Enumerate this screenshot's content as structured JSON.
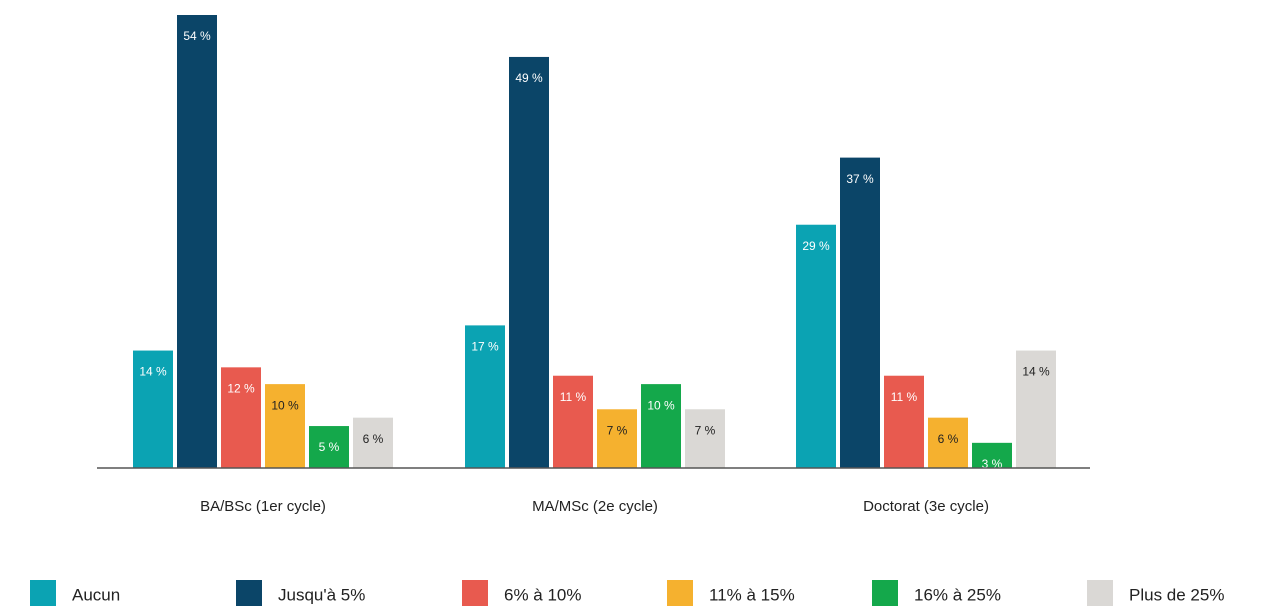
{
  "chart_data": {
    "type": "bar",
    "categories": [
      "BA/BSc (1er cycle)",
      "MA/MSc (2e cycle)",
      "Doctorat (3e cycle)"
    ],
    "series": [
      {
        "name": "Aucun",
        "color": "#0ba3b3",
        "values": [
          14,
          17,
          29
        ],
        "value_labels": [
          "14 %",
          "17 %",
          "29 %"
        ]
      },
      {
        "name": "Jusqu'à 5%",
        "color": "#0b4568",
        "values": [
          54,
          49,
          37
        ],
        "value_labels": [
          "54 %",
          "49 %",
          "37 %"
        ]
      },
      {
        "name": "6% à 10%",
        "color": "#e85a4f",
        "values": [
          12,
          11,
          11
        ],
        "value_labels": [
          "12 %",
          "11 %",
          "11 %"
        ]
      },
      {
        "name": "11% à 15%",
        "color": "#f5b12f",
        "values": [
          10,
          7,
          6
        ],
        "value_labels": [
          "10 %",
          "7 %",
          "6 %"
        ]
      },
      {
        "name": "16% à 25%",
        "color": "#14a84b",
        "values": [
          5,
          10,
          3
        ],
        "value_labels": [
          "5 %",
          "10 %",
          "3 %"
        ]
      },
      {
        "name": "Plus de 25%",
        "color": "#dad8d5",
        "values": [
          6,
          7,
          14
        ],
        "value_labels": [
          "6 %",
          "7 %",
          "14 %"
        ]
      }
    ],
    "legend": "bottom"
  }
}
